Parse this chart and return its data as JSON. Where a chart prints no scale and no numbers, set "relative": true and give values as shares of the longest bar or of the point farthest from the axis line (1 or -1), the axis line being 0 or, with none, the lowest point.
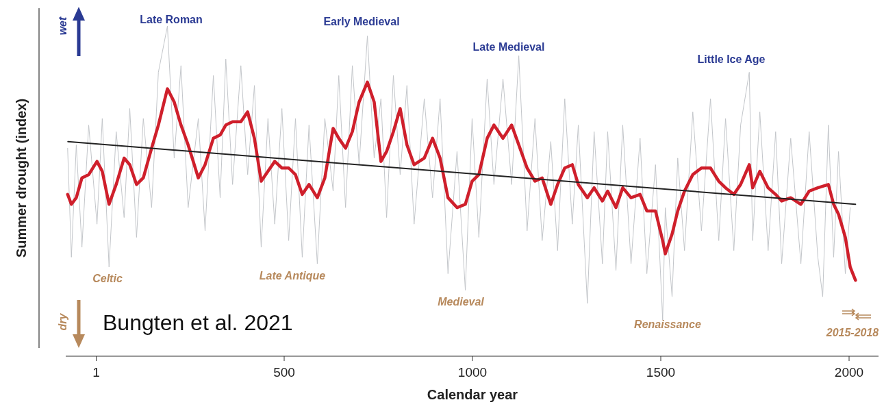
{
  "chart_data": {
    "type": "line",
    "relative": true,
    "xlabel": "Calendar year",
    "ylabel": "Summer drought (index)",
    "xlim": [
      -80,
      2080
    ],
    "xticks": [
      1,
      500,
      1000,
      1500,
      2000
    ],
    "series": [
      {
        "color": "#c3c6ca",
        "x": [
          -75,
          -65,
          -52,
          -37,
          -19,
          3,
          17,
          35,
          54,
          75,
          90,
          108,
          126,
          148,
          166,
          190,
          208,
          226,
          245,
          272,
          290,
          312,
          330,
          345,
          363,
          385,
          403,
          421,
          439,
          457,
          475,
          494,
          512,
          530,
          548,
          566,
          588,
          608,
          630,
          645,
          663,
          681,
          699,
          721,
          739,
          757,
          772,
          790,
          808,
          826,
          845,
          872,
          894,
          914,
          935,
          959,
          981,
          999,
          1017,
          1039,
          1057,
          1081,
          1104,
          1123,
          1145,
          1166,
          1185,
          1208,
          1226,
          1245,
          1265,
          1281,
          1305,
          1323,
          1345,
          1359,
          1381,
          1399,
          1421,
          1445,
          1463,
          1486,
          1505,
          1512,
          1530,
          1545,
          1563,
          1585,
          1608,
          1632,
          1654,
          1672,
          1694,
          1712,
          1735,
          1744,
          1763,
          1785,
          1805,
          1821,
          1845,
          1872,
          1894,
          1917,
          1930,
          1945,
          1959,
          1972,
          1990,
          2003
        ],
        "values": [
          0.63,
          0.3,
          0.64,
          0.33,
          0.7,
          0.4,
          0.72,
          0.27,
          0.68,
          0.42,
          0.75,
          0.36,
          0.72,
          0.45,
          0.86,
          1.0,
          0.6,
          0.88,
          0.45,
          0.72,
          0.38,
          0.85,
          0.48,
          0.9,
          0.52,
          0.88,
          0.55,
          0.82,
          0.33,
          0.72,
          0.4,
          0.75,
          0.35,
          0.72,
          0.3,
          0.7,
          0.28,
          0.72,
          0.5,
          0.85,
          0.45,
          0.88,
          0.58,
          0.97,
          0.6,
          0.78,
          0.42,
          0.85,
          0.55,
          0.82,
          0.4,
          0.78,
          0.48,
          0.78,
          0.25,
          0.62,
          0.2,
          0.72,
          0.36,
          0.84,
          0.52,
          0.84,
          0.52,
          0.91,
          0.38,
          0.72,
          0.35,
          0.65,
          0.32,
          0.78,
          0.4,
          0.7,
          0.16,
          0.68,
          0.28,
          0.68,
          0.26,
          0.7,
          0.28,
          0.66,
          0.25,
          0.58,
          0.11,
          0.45,
          0.18,
          0.6,
          0.32,
          0.74,
          0.38,
          0.78,
          0.35,
          0.72,
          0.32,
          0.7,
          0.86,
          0.35,
          0.74,
          0.32,
          0.68,
          0.28,
          0.66,
          0.28,
          0.68,
          0.3,
          0.18,
          0.7,
          0.3,
          0.62,
          0.25,
          0.45
        ]
      },
      {
        "color": "#cf1f2b",
        "x": [
          -75,
          -65,
          -52,
          -37,
          -19,
          3,
          17,
          35,
          54,
          75,
          90,
          108,
          126,
          148,
          166,
          190,
          208,
          226,
          245,
          272,
          290,
          312,
          330,
          345,
          363,
          385,
          403,
          421,
          439,
          457,
          475,
          494,
          512,
          530,
          548,
          566,
          588,
          608,
          630,
          645,
          663,
          681,
          699,
          721,
          739,
          757,
          772,
          790,
          808,
          826,
          845,
          872,
          894,
          914,
          935,
          959,
          981,
          999,
          1017,
          1039,
          1057,
          1081,
          1104,
          1123,
          1145,
          1166,
          1185,
          1208,
          1226,
          1245,
          1265,
          1281,
          1305,
          1323,
          1345,
          1359,
          1381,
          1399,
          1421,
          1445,
          1463,
          1486,
          1505,
          1512,
          1530,
          1545,
          1563,
          1585,
          1608,
          1632,
          1654,
          1672,
          1694,
          1712,
          1735,
          1744,
          1763,
          1785,
          1805,
          1821,
          1845,
          1872,
          1894,
          1917,
          1945,
          1959,
          1972,
          1990,
          2003,
          2017
        ],
        "values": [
          0.49,
          0.46,
          0.48,
          0.54,
          0.55,
          0.59,
          0.56,
          0.46,
          0.52,
          0.6,
          0.58,
          0.52,
          0.54,
          0.63,
          0.7,
          0.81,
          0.77,
          0.7,
          0.64,
          0.54,
          0.58,
          0.66,
          0.67,
          0.7,
          0.71,
          0.71,
          0.74,
          0.66,
          0.53,
          0.56,
          0.59,
          0.57,
          0.57,
          0.55,
          0.49,
          0.52,
          0.48,
          0.54,
          0.69,
          0.66,
          0.63,
          0.68,
          0.77,
          0.83,
          0.77,
          0.59,
          0.62,
          0.68,
          0.75,
          0.64,
          0.58,
          0.6,
          0.66,
          0.6,
          0.48,
          0.45,
          0.46,
          0.53,
          0.55,
          0.66,
          0.7,
          0.66,
          0.7,
          0.64,
          0.57,
          0.53,
          0.54,
          0.46,
          0.52,
          0.57,
          0.58,
          0.52,
          0.48,
          0.51,
          0.47,
          0.5,
          0.45,
          0.51,
          0.48,
          0.49,
          0.44,
          0.44,
          0.35,
          0.31,
          0.37,
          0.44,
          0.5,
          0.55,
          0.57,
          0.57,
          0.53,
          0.51,
          0.49,
          0.52,
          0.58,
          0.51,
          0.56,
          0.51,
          0.49,
          0.47,
          0.48,
          0.46,
          0.5,
          0.51,
          0.52,
          0.46,
          0.43,
          0.36,
          0.27,
          0.23
        ]
      },
      {
        "color": "#222222",
        "x": [
          -74,
          2017
        ],
        "values": [
          0.65,
          0.46
        ]
      }
    ],
    "annotations": [
      "wet",
      "dry",
      "Late Roman",
      "Early Medieval",
      "Late Medieval",
      "Little Ice Age",
      "Celtic",
      "Late Antique",
      "Medieval",
      "Renaissance",
      "2015-2018",
      "Bungten et al. 2021"
    ]
  }
}
